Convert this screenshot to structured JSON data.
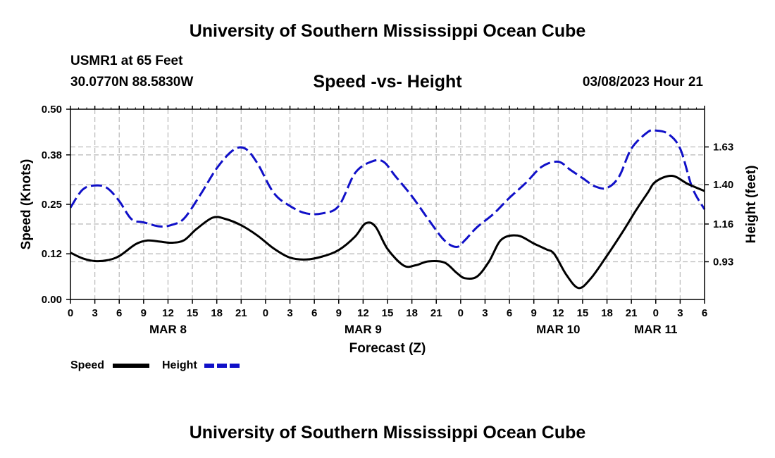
{
  "header": {
    "title": "University of Southern Mississippi Ocean Cube",
    "station": "USMR1 at 65 Feet",
    "coordinates": "30.0770N  88.5830W",
    "plot_title": "Speed -vs- Height",
    "datetime": "03/08/2023 Hour 21"
  },
  "footer": {
    "title": "University of Southern Mississippi Ocean Cube"
  },
  "legend": {
    "speed_label": "Speed",
    "height_label": "Height"
  },
  "colors": {
    "speed": "#000000",
    "height": "#1010c8",
    "grid": "#bdbdbd"
  },
  "chart_data": {
    "type": "line",
    "title": "Speed -vs- Height",
    "xlabel": "Forecast (Z)",
    "ylabel": "Speed (Knots)",
    "y2label": "Height (feet)",
    "x_hours_range": [
      0,
      78
    ],
    "x_tick_labels": [
      "0",
      "3",
      "6",
      "9",
      "12",
      "15",
      "18",
      "21",
      "0",
      "3",
      "6",
      "9",
      "12",
      "15",
      "18",
      "21",
      "0",
      "3",
      "6",
      "9",
      "12",
      "15",
      "18",
      "21",
      "0",
      "3",
      "6"
    ],
    "date_labels": [
      {
        "hour": 12,
        "label": "MAR 8"
      },
      {
        "hour": 36,
        "label": "MAR 9"
      },
      {
        "hour": 60,
        "label": "MAR 10"
      },
      {
        "hour": 72,
        "label": "MAR 11"
      }
    ],
    "ylim": [
      0,
      0.5
    ],
    "y_ticks": [
      0.0,
      0.12,
      0.25,
      0.38,
      0.5
    ],
    "y_tick_labels": [
      "0.00",
      "0.12",
      "0.25",
      "0.38",
      "0.50"
    ],
    "y2lim": [
      0.7,
      1.86
    ],
    "y2_ticks": [
      0.93,
      1.16,
      1.4,
      1.63
    ],
    "y2_tick_labels": [
      "0.93",
      "1.16",
      "1.40",
      "1.63"
    ],
    "series": [
      {
        "name": "Speed",
        "axis": "left",
        "style": "solid",
        "x": [
          0,
          1.5,
          3,
          4.5,
          6,
          8,
          9.5,
          11,
          12.5,
          14,
          15.5,
          17.5,
          19,
          21,
          23,
          25,
          27,
          29,
          31,
          33,
          35,
          36.3,
          37.5,
          39,
          41,
          42.5,
          44,
          46,
          47.5,
          48.5,
          50,
          51.5,
          53,
          55,
          57,
          58.5,
          59.5,
          61,
          62.5,
          64,
          66,
          68,
          69.5,
          71,
          72,
          74,
          76,
          78
        ],
        "values": [
          0.123,
          0.108,
          0.101,
          0.103,
          0.114,
          0.145,
          0.155,
          0.152,
          0.149,
          0.156,
          0.185,
          0.215,
          0.212,
          0.195,
          0.168,
          0.134,
          0.11,
          0.105,
          0.113,
          0.13,
          0.165,
          0.2,
          0.192,
          0.133,
          0.089,
          0.09,
          0.1,
          0.097,
          0.07,
          0.056,
          0.06,
          0.1,
          0.157,
          0.168,
          0.147,
          0.132,
          0.12,
          0.065,
          0.03,
          0.055,
          0.115,
          0.18,
          0.232,
          0.28,
          0.31,
          0.325,
          0.303,
          0.285
        ]
      },
      {
        "name": "Height",
        "axis": "right",
        "style": "dashed",
        "x": [
          0,
          1.5,
          3,
          4.5,
          6,
          7.5,
          9,
          11,
          12.5,
          14,
          16,
          18,
          20,
          21.5,
          23,
          25,
          27,
          29,
          31,
          33,
          35,
          37,
          38.5,
          40,
          42,
          44,
          46,
          47.5,
          48.5,
          50,
          52,
          54,
          56,
          58,
          60,
          61.5,
          63,
          64.5,
          66,
          67.5,
          69,
          71,
          72,
          73.5,
          75,
          76.5,
          78
        ],
        "values": [
          1.26,
          1.37,
          1.395,
          1.38,
          1.3,
          1.19,
          1.17,
          1.145,
          1.155,
          1.195,
          1.34,
          1.5,
          1.61,
          1.62,
          1.53,
          1.35,
          1.27,
          1.225,
          1.225,
          1.27,
          1.47,
          1.54,
          1.54,
          1.45,
          1.33,
          1.19,
          1.06,
          1.02,
          1.06,
          1.14,
          1.22,
          1.32,
          1.41,
          1.51,
          1.54,
          1.49,
          1.44,
          1.39,
          1.38,
          1.45,
          1.62,
          1.72,
          1.73,
          1.71,
          1.62,
          1.38,
          1.25
        ]
      }
    ]
  }
}
